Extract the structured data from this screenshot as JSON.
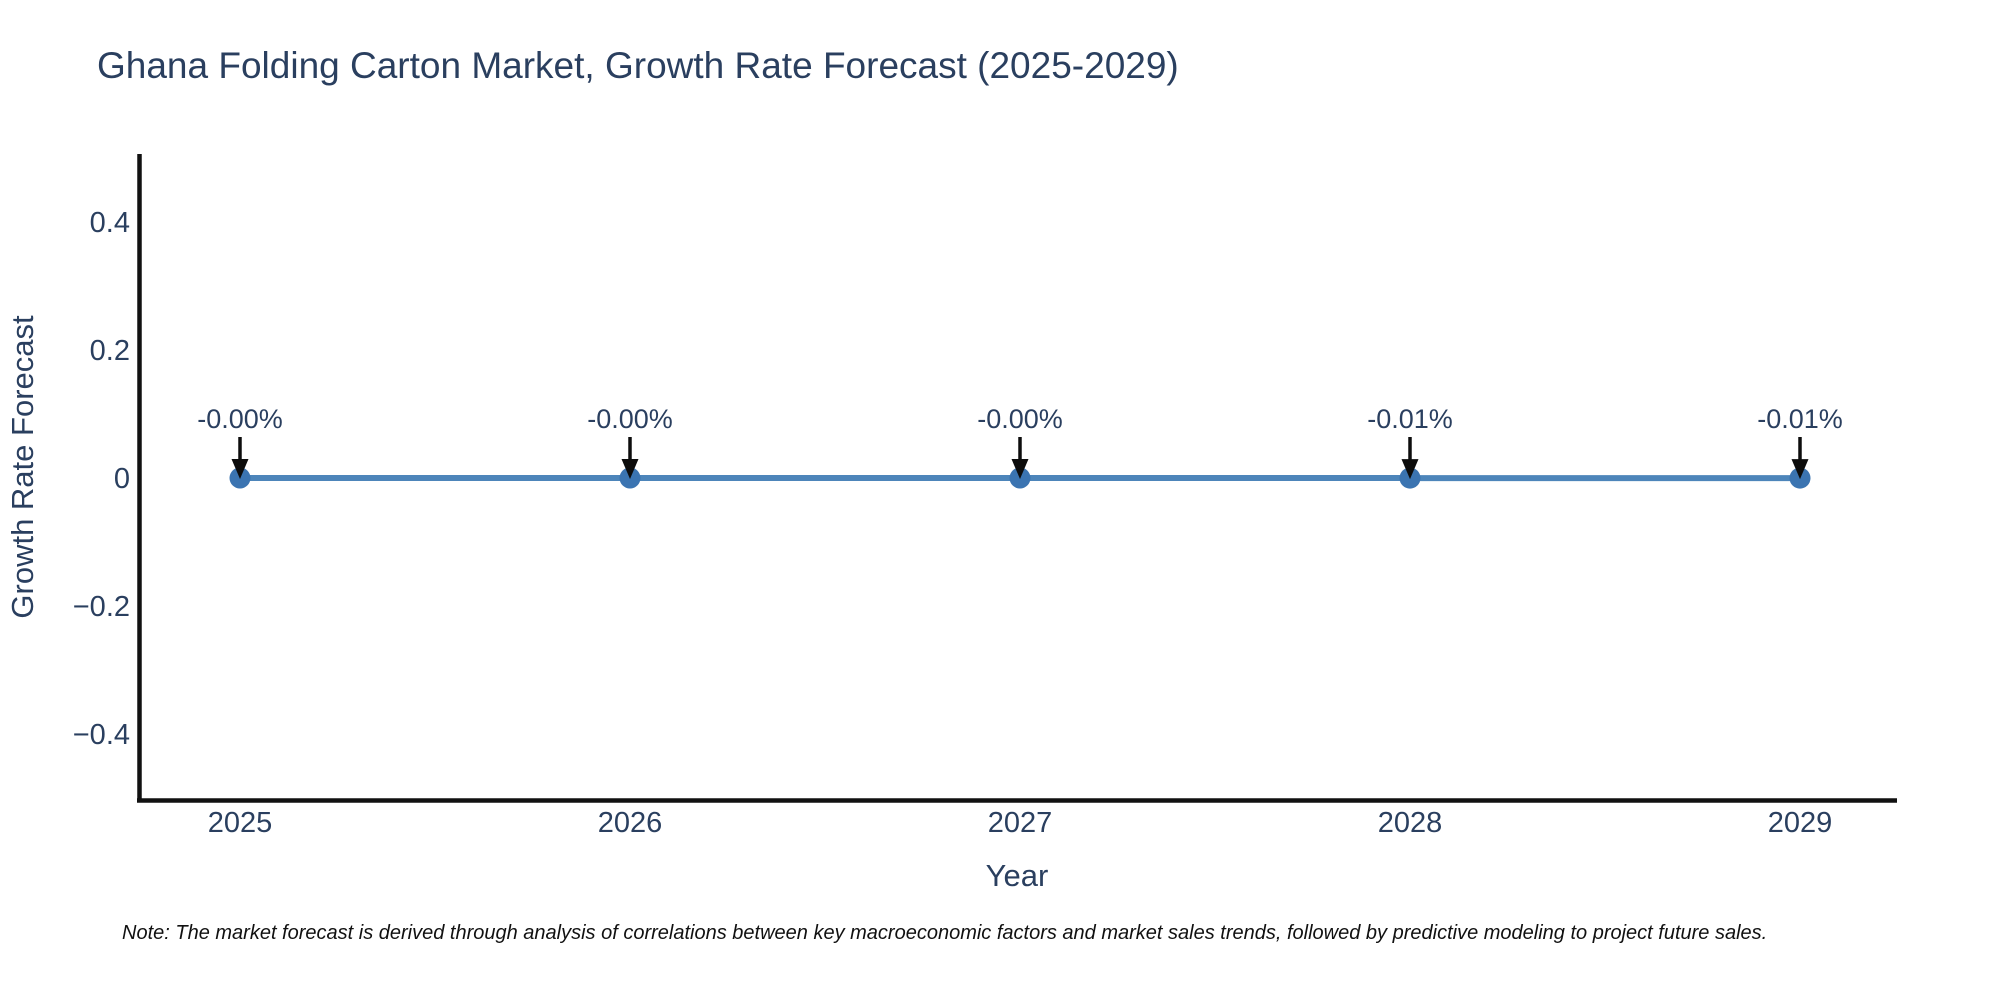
{
  "note": "Note: The market forecast is derived through analysis of correlations between key macroeconomic factors and market sales trends, followed by predictive modeling to project future sales.",
  "chart_data": {
    "type": "line",
    "title": "Ghana Folding Carton Market, Growth Rate Forecast (2025-2029)",
    "xlabel": "Year",
    "ylabel": "Growth Rate Forecast",
    "categories": [
      "2025",
      "2026",
      "2027",
      "2028",
      "2029"
    ],
    "x": [
      2025,
      2026,
      2027,
      2028,
      2029
    ],
    "values": [
      0.0,
      0.0,
      0.0,
      -0.0001,
      -0.0001
    ],
    "point_labels": [
      "-0.00%",
      "-0.00%",
      "-0.00%",
      "-0.01%",
      "-0.01%"
    ],
    "yticks": [
      {
        "value": 0.4,
        "label": "0.4"
      },
      {
        "value": 0.2,
        "label": "0.2"
      },
      {
        "value": 0,
        "label": "0"
      },
      {
        "value": -0.2,
        "label": "−0.2"
      },
      {
        "value": -0.4,
        "label": "−0.4"
      }
    ],
    "ylim": [
      -0.5,
      0.5
    ],
    "grid": false,
    "legend": false,
    "colors": {
      "line": "#4d85ba",
      "marker": "#3b74b1",
      "axis_line": "#111111",
      "text": "#2a3f5f",
      "arrow": "#0d0d0d",
      "note_text": "#111111"
    }
  }
}
